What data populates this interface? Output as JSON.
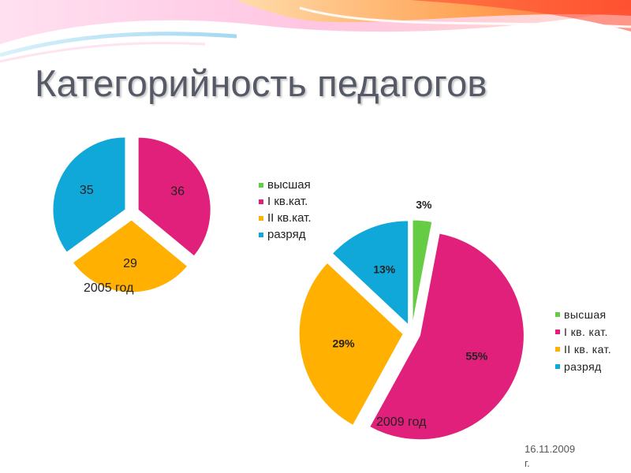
{
  "slide": {
    "title": "Категорийность педагогов",
    "date_line1": "16.11.2009",
    "date_line2": "г."
  },
  "colors": {
    "green": "#66cc44",
    "magenta": "#e0207a",
    "orange": "#ffb000",
    "cyan": "#10a8d8"
  },
  "chart_data": [
    {
      "type": "pie",
      "caption": "2005 год",
      "legend_position": "right",
      "categories": [
        "высшая",
        "I кв.кат.",
        "II кв.кат.",
        "разряд"
      ],
      "values": [
        0,
        36,
        29,
        35
      ],
      "data_labels": [
        "",
        "36",
        "29",
        "35"
      ],
      "colors": [
        "#66cc44",
        "#e0207a",
        "#ffb000",
        "#10a8d8"
      ]
    },
    {
      "type": "pie",
      "caption": "2009 год",
      "legend_position": "right",
      "categories": [
        "высшая",
        "I кв. кат.",
        "II кв. кат.",
        "разряд"
      ],
      "values": [
        3,
        55,
        29,
        13
      ],
      "data_labels": [
        "3%",
        "55%",
        "29%",
        "13%"
      ],
      "colors": [
        "#66cc44",
        "#e0207a",
        "#ffb000",
        "#10a8d8"
      ]
    }
  ]
}
